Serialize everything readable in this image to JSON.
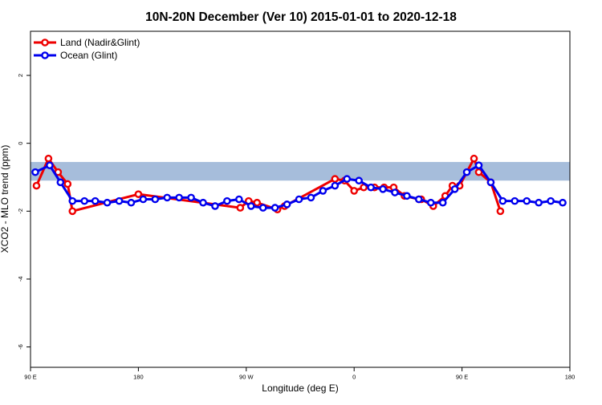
{
  "chart_data": {
    "type": "line",
    "title": "10N-20N December (Ver 10)   2015-01-01 to 2020-12-18",
    "xlabel": "Longitude (deg E)",
    "ylabel": "XCO2 - MLO trend (ppm)",
    "xlim": [
      90,
      540
    ],
    "ylim": [
      -6.6,
      3.3
    ],
    "x_ticks": [
      {
        "value": 90,
        "label": "90 E"
      },
      {
        "value": 180,
        "label": "180"
      },
      {
        "value": 270,
        "label": "90 W"
      },
      {
        "value": 360,
        "label": "0"
      },
      {
        "value": 450,
        "label": "90 E"
      },
      {
        "value": 540,
        "label": "180"
      }
    ],
    "y_ticks": [
      -6,
      -4,
      -2,
      0,
      2
    ],
    "grid": false,
    "legend_position": "top-left",
    "background_map": {
      "description": "world map band, ocean blue and land yellow",
      "y_range": [
        -1.1,
        -0.55
      ],
      "ocean_color": "#a6bddb",
      "land_color": "#f7d87c",
      "land_spans": []
    },
    "series": [
      {
        "name": "Land (Nadir&Glint)",
        "color": "#ee0000",
        "x": [
          95,
          105,
          113,
          121,
          125,
          180,
          265,
          272,
          279,
          296,
          302,
          344,
          352,
          360,
          368,
          377,
          385,
          393,
          402,
          414,
          416,
          426,
          436,
          442,
          448,
          460,
          464,
          474,
          482
        ],
        "y": [
          -1.25,
          -0.45,
          -0.85,
          -1.2,
          -2.0,
          -1.5,
          -1.9,
          -1.7,
          -1.75,
          -1.95,
          -1.85,
          -1.05,
          -1.1,
          -1.4,
          -1.3,
          -1.3,
          -1.3,
          -1.3,
          -1.55,
          -1.65,
          -1.65,
          -1.85,
          -1.55,
          -1.25,
          -1.25,
          -0.45,
          -0.85,
          -1.15,
          -2.0
        ]
      },
      {
        "name": "Ocean (Glint)",
        "color": "#0000ee",
        "x": [
          94,
          106,
          115,
          125,
          135,
          144,
          154,
          164,
          174,
          184,
          194,
          204,
          214,
          224,
          234,
          244,
          254,
          264,
          274,
          284,
          294,
          304,
          314,
          324,
          334,
          344,
          354,
          364,
          374,
          384,
          394,
          404,
          414,
          424,
          434,
          444,
          454,
          464,
          474,
          484,
          494,
          504,
          514,
          524,
          534
        ],
        "y": [
          -0.85,
          -0.65,
          -1.15,
          -1.7,
          -1.7,
          -1.7,
          -1.75,
          -1.7,
          -1.75,
          -1.65,
          -1.65,
          -1.6,
          -1.6,
          -1.6,
          -1.75,
          -1.85,
          -1.7,
          -1.65,
          -1.85,
          -1.9,
          -1.9,
          -1.8,
          -1.65,
          -1.6,
          -1.4,
          -1.25,
          -1.05,
          -1.1,
          -1.3,
          -1.35,
          -1.45,
          -1.55,
          -1.65,
          -1.75,
          -1.75,
          -1.35,
          -0.85,
          -0.65,
          -1.15,
          -1.7,
          -1.7,
          -1.7,
          -1.75,
          -1.7,
          -1.75
        ]
      }
    ]
  }
}
